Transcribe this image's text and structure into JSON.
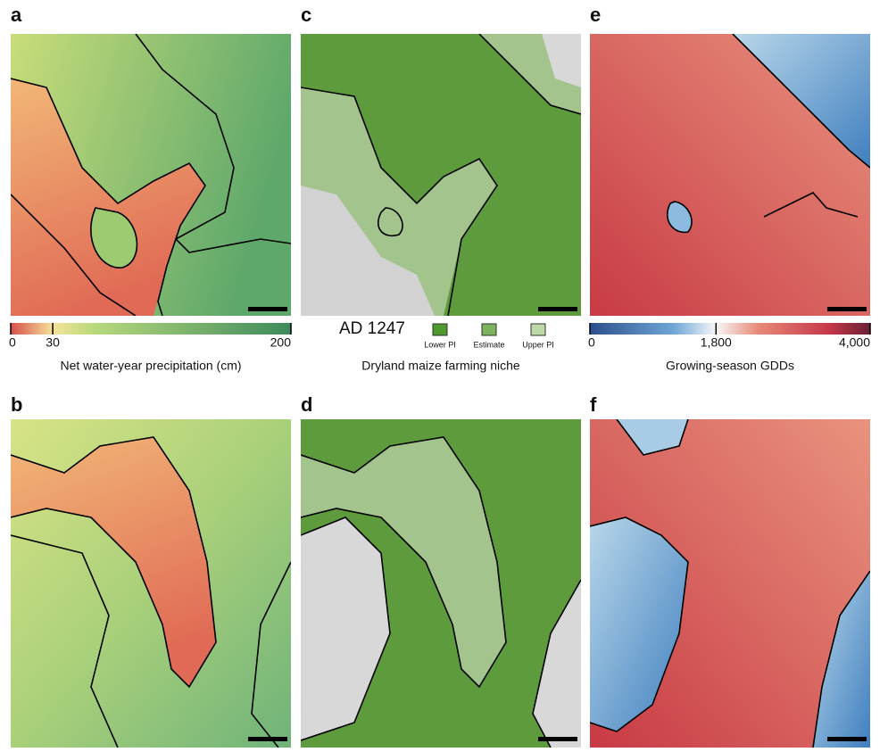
{
  "panels": [
    "a",
    "b",
    "c",
    "d",
    "e",
    "f"
  ],
  "colorbars": [
    {
      "range": [
        0,
        200
      ],
      "ticks": [
        0,
        30,
        200
      ],
      "label": "Net water-year precipitation (cm)"
    },
    {
      "range": [
        0,
        4000
      ],
      "ticks": [
        0,
        {
          "value": 1800,
          "label": "1,800"
        },
        {
          "value": 4000,
          "label": "4,000"
        }
      ],
      "label": "Growing-season GDDs"
    }
  ],
  "legend": {
    "title": "AD 1247",
    "items": [
      {
        "name": "Lower PI",
        "color": "#4f9a2f"
      },
      {
        "name": "Estimate",
        "color": "#7db35c"
      },
      {
        "name": "Upper PI",
        "color": "#bcd9a8"
      }
    ],
    "label": "Dryland maize farming niche"
  }
}
